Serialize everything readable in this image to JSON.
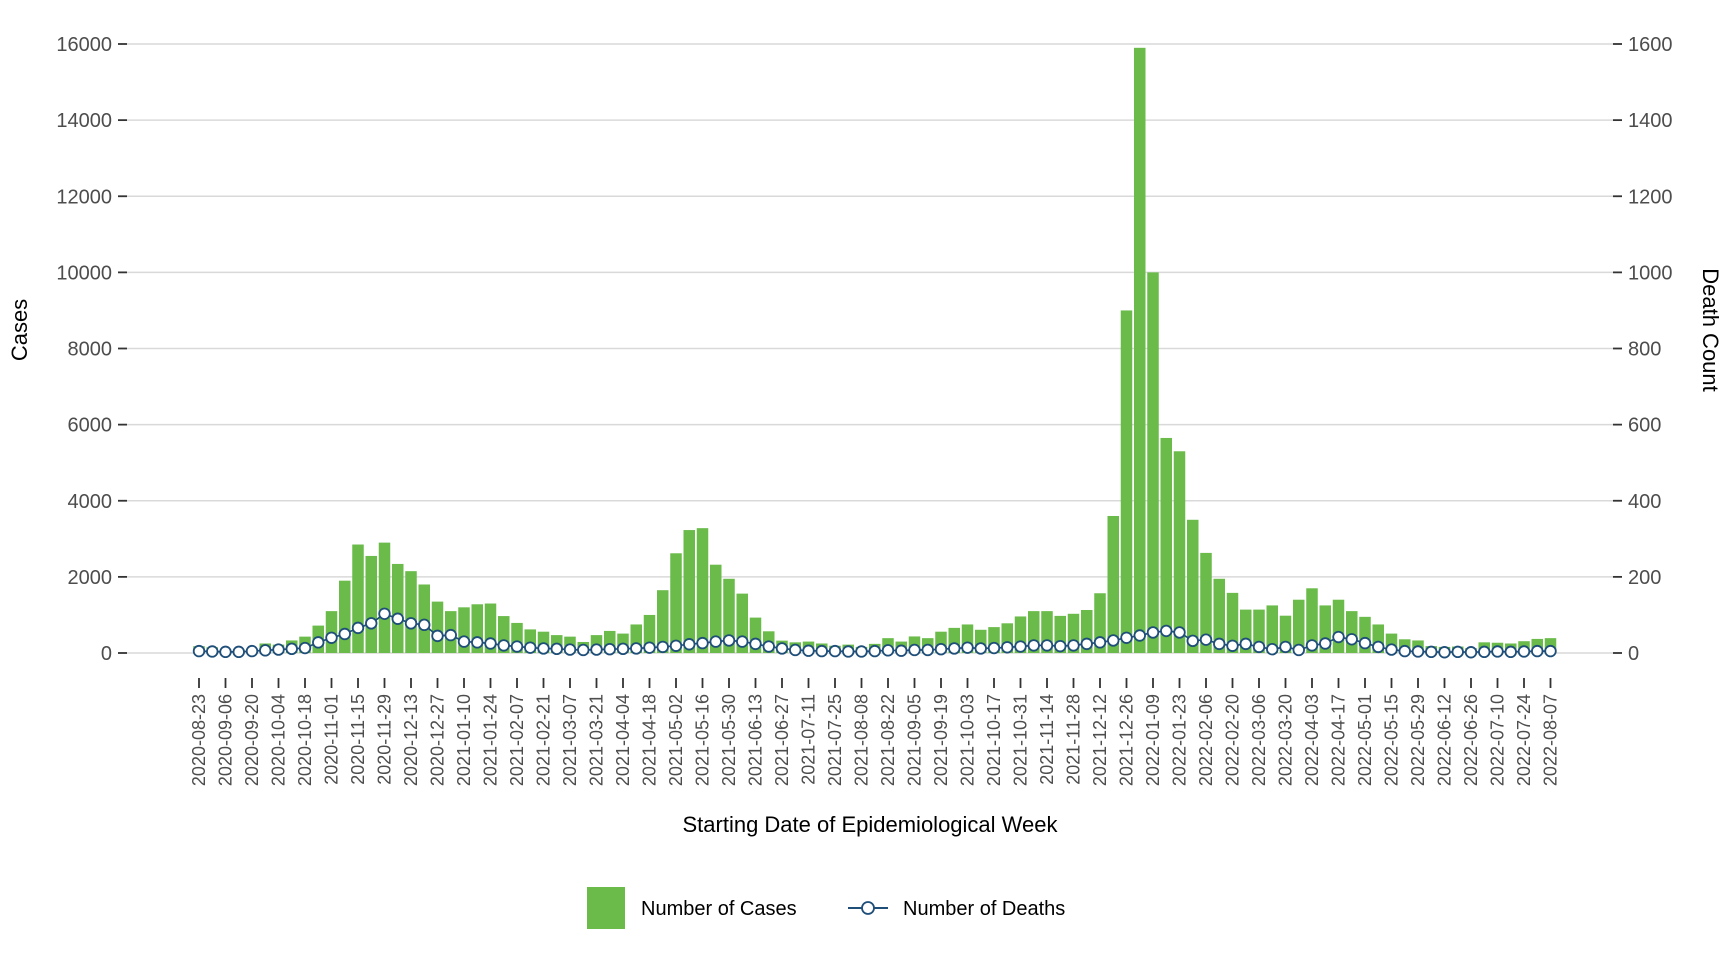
{
  "figure": {
    "left_axis_title": "Cases",
    "right_axis_title": "Death Count",
    "x_axis_title": "Starting Date of Epidemiological Week",
    "legend": {
      "cases_label": "Number of Cases",
      "deaths_label": "Number of Deaths"
    }
  },
  "colors": {
    "bar_green": "#6ABB4A",
    "line_navy": "#1F4E79",
    "gridline_gray": "#D9D9D9",
    "tick_mark_gray": "#333333",
    "tick_label_gray": "#4D4D4D",
    "axis_title_black": "#000000",
    "point_fill": "#FFFFFF"
  },
  "chart_data": {
    "type": "bar",
    "subtype": "weekly bars (cases, left axis) + line with open circle markers (deaths, right axis)",
    "title": "",
    "xlabel": "Starting Date of Epidemiological Week",
    "ylabel_left": "Cases",
    "ylabel_right": "Death Count",
    "left_ylim": [
      0,
      16000
    ],
    "right_ylim": [
      0,
      1600
    ],
    "left_yticks": [
      0,
      2000,
      4000,
      6000,
      8000,
      10000,
      12000,
      14000,
      16000
    ],
    "right_yticks": [
      0,
      200,
      400,
      600,
      800,
      1000,
      1200,
      1400,
      1600
    ],
    "grid": "horizontal only",
    "legend_position": "bottom center",
    "x": [
      "2020-08-23",
      "2020-08-30",
      "2020-09-06",
      "2020-09-13",
      "2020-09-20",
      "2020-09-27",
      "2020-10-04",
      "2020-10-11",
      "2020-10-18",
      "2020-10-25",
      "2020-11-01",
      "2020-11-08",
      "2020-11-15",
      "2020-11-22",
      "2020-11-29",
      "2020-12-06",
      "2020-12-13",
      "2020-12-20",
      "2020-12-27",
      "2021-01-03",
      "2021-01-10",
      "2021-01-17",
      "2021-01-24",
      "2021-01-31",
      "2021-02-07",
      "2021-02-14",
      "2021-02-21",
      "2021-02-28",
      "2021-03-07",
      "2021-03-14",
      "2021-03-21",
      "2021-03-28",
      "2021-04-04",
      "2021-04-11",
      "2021-04-18",
      "2021-04-25",
      "2021-05-02",
      "2021-05-09",
      "2021-05-16",
      "2021-05-23",
      "2021-05-30",
      "2021-06-06",
      "2021-06-13",
      "2021-06-20",
      "2021-06-27",
      "2021-07-04",
      "2021-07-11",
      "2021-07-18",
      "2021-07-25",
      "2021-08-01",
      "2021-08-08",
      "2021-08-15",
      "2021-08-22",
      "2021-08-29",
      "2021-09-05",
      "2021-09-12",
      "2021-09-19",
      "2021-09-26",
      "2021-10-03",
      "2021-10-10",
      "2021-10-17",
      "2021-10-24",
      "2021-10-31",
      "2021-11-07",
      "2021-11-14",
      "2021-11-21",
      "2021-11-28",
      "2021-12-05",
      "2021-12-12",
      "2021-12-19",
      "2021-12-26",
      "2022-01-02",
      "2022-01-09",
      "2022-01-16",
      "2022-01-23",
      "2022-01-30",
      "2022-02-06",
      "2022-02-13",
      "2022-02-20",
      "2022-02-27",
      "2022-03-06",
      "2022-03-13",
      "2022-03-20",
      "2022-03-27",
      "2022-04-03",
      "2022-04-10",
      "2022-04-17",
      "2022-04-24",
      "2022-05-01",
      "2022-05-08",
      "2022-05-15",
      "2022-05-22",
      "2022-05-29",
      "2022-06-05",
      "2022-06-12",
      "2022-06-19",
      "2022-06-26",
      "2022-07-03",
      "2022-07-10",
      "2022-07-17",
      "2022-07-24",
      "2022-07-31",
      "2022-08-07"
    ],
    "x_tick_every": 2,
    "x_tick_labels": [
      "2020-08-23",
      "2020-09-06",
      "2020-09-20",
      "2020-10-04",
      "2020-10-18",
      "2020-11-01",
      "2020-11-15",
      "2020-11-29",
      "2020-12-13",
      "2020-12-27",
      "2021-01-10",
      "2021-01-24",
      "2021-02-07",
      "2021-02-21",
      "2021-03-07",
      "2021-03-21",
      "2021-04-04",
      "2021-04-18",
      "2021-05-02",
      "2021-05-16",
      "2021-05-30",
      "2021-06-13",
      "2021-06-27",
      "2021-07-11",
      "2021-07-25",
      "2021-08-08",
      "2021-08-22",
      "2021-09-05",
      "2021-09-19",
      "2021-10-03",
      "2021-10-17",
      "2021-10-31",
      "2021-11-14",
      "2021-11-28",
      "2021-12-12",
      "2021-12-26",
      "2022-01-09",
      "2022-01-23",
      "2022-02-06",
      "2022-02-20",
      "2022-03-06",
      "2022-03-20",
      "2022-04-03",
      "2022-04-17",
      "2022-05-01",
      "2022-05-15",
      "2022-05-29",
      "2022-06-12",
      "2022-06-26",
      "2022-07-10",
      "2022-07-24",
      "2022-08-07"
    ],
    "series": [
      {
        "name": "Number of Cases",
        "axis": "left",
        "type": "bar",
        "values": [
          180,
          150,
          70,
          60,
          90,
          250,
          220,
          330,
          430,
          720,
          1100,
          1900,
          2850,
          2550,
          2900,
          2340,
          2150,
          1800,
          1350,
          1100,
          1200,
          1280,
          1300,
          970,
          790,
          620,
          560,
          470,
          430,
          290,
          470,
          580,
          510,
          750,
          1000,
          1650,
          2620,
          3230,
          3280,
          2320,
          1950,
          1560,
          930,
          570,
          325,
          280,
          300,
          250,
          190,
          220,
          160,
          240,
          390,
          300,
          435,
          390,
          560,
          660,
          750,
          610,
          680,
          780,
          960,
          1100,
          1100,
          975,
          1030,
          1130,
          1570,
          3600,
          9000,
          15900,
          10000,
          5650,
          5300,
          3500,
          2630,
          1950,
          1580,
          1140,
          1140,
          1250,
          980,
          1400,
          1700,
          1250,
          1400,
          1100,
          950,
          750,
          510,
          360,
          330,
          180,
          160,
          170,
          130,
          280,
          270,
          250,
          310,
          370,
          390
        ]
      },
      {
        "name": "Number of Deaths",
        "axis": "right",
        "type": "line",
        "marker": "open-circle",
        "values": [
          5,
          4,
          3,
          3,
          5,
          7,
          9,
          11,
          13,
          28,
          40,
          50,
          66,
          78,
          103,
          90,
          78,
          74,
          45,
          47,
          30,
          28,
          25,
          20,
          17,
          14,
          12,
          11,
          9,
          8,
          9,
          10,
          11,
          12,
          14,
          16,
          19,
          23,
          26,
          30,
          33,
          30,
          24,
          17,
          12,
          8,
          6,
          5,
          5,
          4,
          4,
          5,
          7,
          6,
          8,
          8,
          10,
          12,
          14,
          12,
          13,
          15,
          17,
          20,
          20,
          18,
          20,
          24,
          28,
          33,
          40,
          46,
          54,
          58,
          54,
          32,
          35,
          24,
          19,
          24,
          16,
          10,
          16,
          8,
          20,
          25,
          42,
          36,
          26,
          16,
          9,
          5,
          4,
          3,
          2,
          3,
          2,
          3,
          4,
          3,
          4,
          5,
          5
        ]
      }
    ]
  }
}
